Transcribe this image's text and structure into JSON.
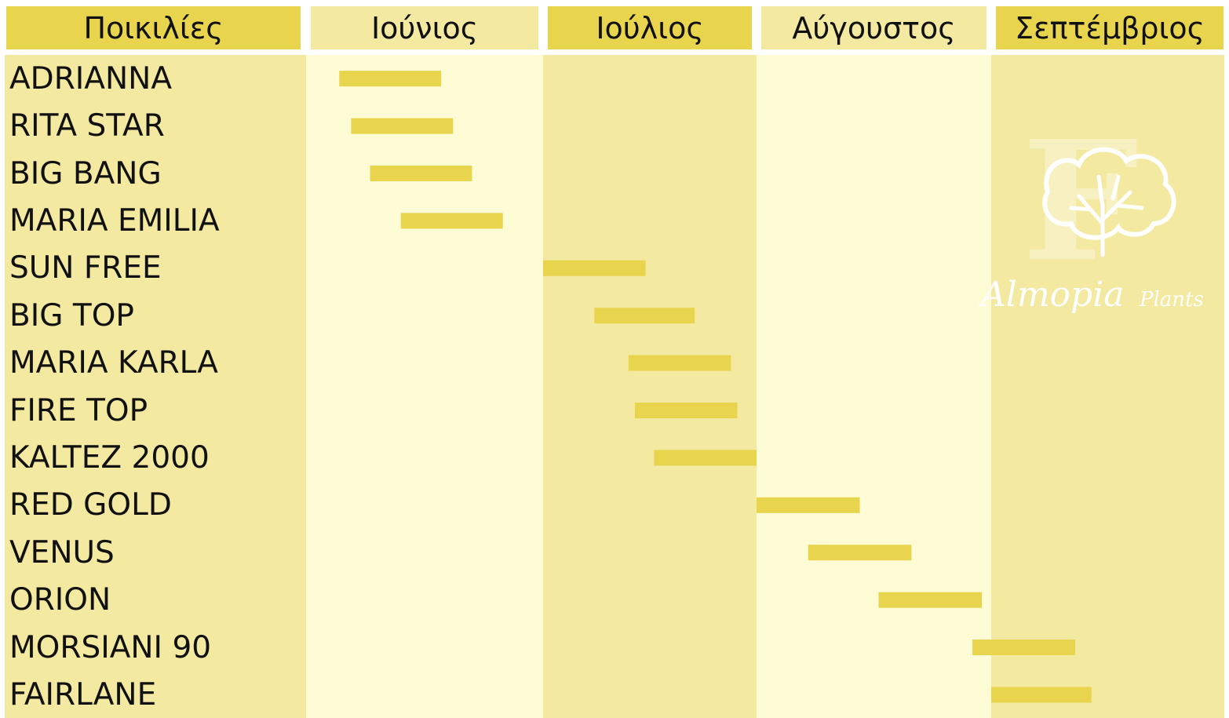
{
  "colors": {
    "header_dark": "#e8d44d",
    "header_light": "#f3e9a0",
    "column_dark": "#f3e9a0",
    "column_light": "#fefcd4",
    "bar": "#e8d44d",
    "logo": "#ffffff"
  },
  "logo_text": {
    "brand": "Almopia",
    "suffix": "Plants",
    "mark": "F"
  },
  "chart_data": {
    "type": "bar",
    "layout": "gantt-timeline",
    "title": "",
    "header_label": "Ποικιλίες",
    "months": [
      "Ιούνιος",
      "Ιούλιος",
      "Αύγουστος",
      "Σεπτέμβριος"
    ],
    "x_unit": "months since start of June",
    "xlim": [
      0,
      4
    ],
    "series": [
      {
        "variety": "ADRIANNA",
        "start": 0.14,
        "end": 0.57
      },
      {
        "variety": "RITA STAR",
        "start": 0.19,
        "end": 0.62
      },
      {
        "variety": "BIG BANG",
        "start": 0.27,
        "end": 0.7
      },
      {
        "variety": "MARIA EMILIA",
        "start": 0.4,
        "end": 0.83
      },
      {
        "variety": "SUN FREE",
        "start": 1.0,
        "end": 1.48
      },
      {
        "variety": "BIG TOP",
        "start": 1.24,
        "end": 1.71
      },
      {
        "variety": "MARIA KARLA",
        "start": 1.4,
        "end": 1.88
      },
      {
        "variety": "FIRE TOP",
        "start": 1.43,
        "end": 1.91
      },
      {
        "variety": "KALTEZ 2000",
        "start": 1.52,
        "end": 2.0
      },
      {
        "variety": "RED GOLD",
        "start": 2.0,
        "end": 2.44
      },
      {
        "variety": "VENUS",
        "start": 2.22,
        "end": 2.66
      },
      {
        "variety": "ORION",
        "start": 2.52,
        "end": 2.96
      },
      {
        "variety": "MORSIANI 90",
        "start": 2.92,
        "end": 3.36
      },
      {
        "variety": "FAIRLANE",
        "start": 3.0,
        "end": 3.43
      }
    ]
  }
}
